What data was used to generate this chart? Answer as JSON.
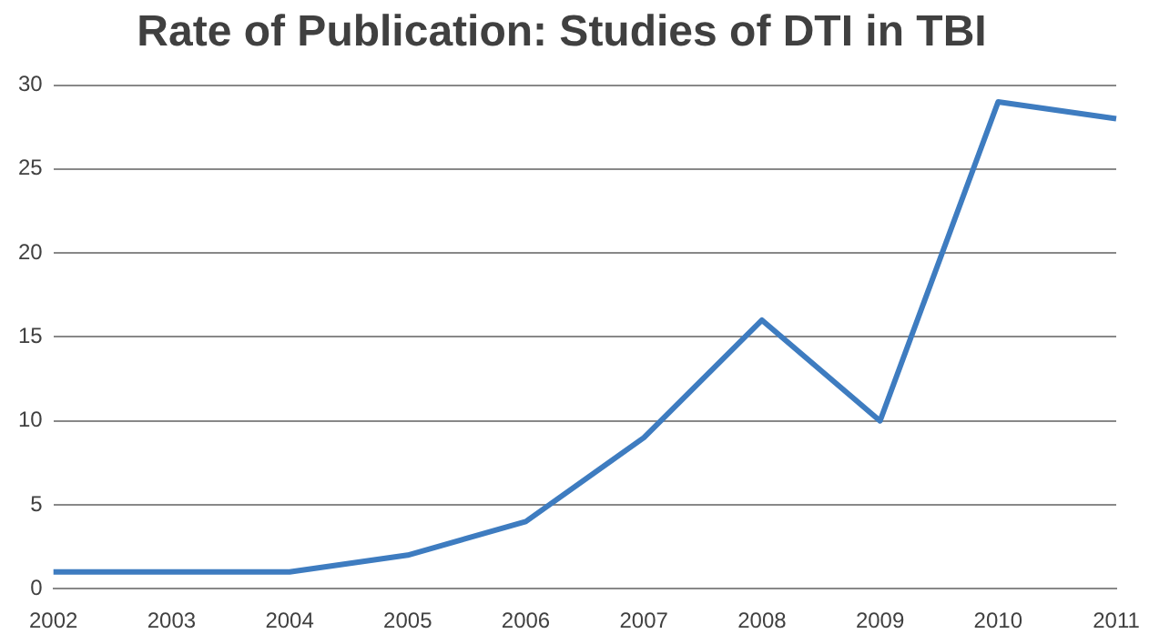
{
  "chart_data": {
    "type": "line",
    "title": "Rate of Publication: Studies of DTI in TBI",
    "categories": [
      "2002",
      "2003",
      "2004",
      "2005",
      "2006",
      "2007",
      "2008",
      "2009",
      "2010",
      "2011"
    ],
    "values": [
      1,
      1,
      1,
      2,
      4,
      9,
      16,
      10,
      29,
      28
    ],
    "color": "#3e7cc0",
    "ylim": [
      0,
      30
    ],
    "yticks": [
      0,
      5,
      10,
      15,
      20,
      25,
      30
    ],
    "grid": "y",
    "legend": false,
    "marker": "none",
    "line_style": "solid"
  }
}
